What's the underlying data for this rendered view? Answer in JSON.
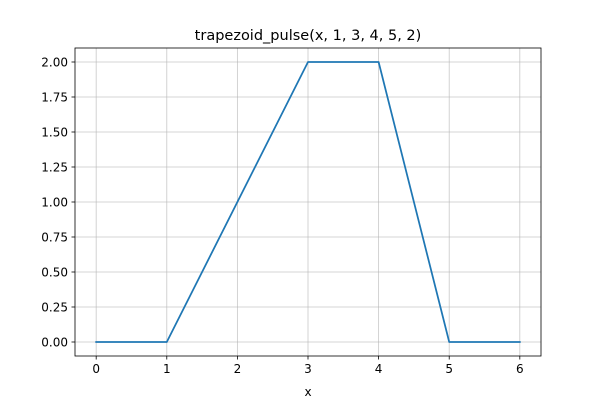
{
  "chart_data": {
    "type": "line",
    "title": "trapezoid_pulse(x, 1, 3, 4, 5, 2)",
    "xlabel": "x",
    "ylabel": "",
    "xlim": [
      -0.3,
      6.3
    ],
    "ylim": [
      -0.1,
      2.1
    ],
    "xticks": [
      0,
      1,
      2,
      3,
      4,
      5,
      6
    ],
    "xtick_labels": [
      "0",
      "1",
      "2",
      "3",
      "4",
      "5",
      "6"
    ],
    "yticks": [
      0,
      0.25,
      0.5,
      0.75,
      1.0,
      1.25,
      1.5,
      1.75,
      2.0
    ],
    "ytick_labels": [
      "0.00",
      "0.25",
      "0.50",
      "0.75",
      "1.00",
      "1.25",
      "1.50",
      "1.75",
      "2.00"
    ],
    "grid": true,
    "legend": "none",
    "series": [
      {
        "color": "#1f77b4",
        "x": [
          0,
          1,
          3,
          4,
          5,
          6
        ],
        "y": [
          0,
          0,
          2,
          2,
          0,
          0
        ]
      }
    ]
  }
}
